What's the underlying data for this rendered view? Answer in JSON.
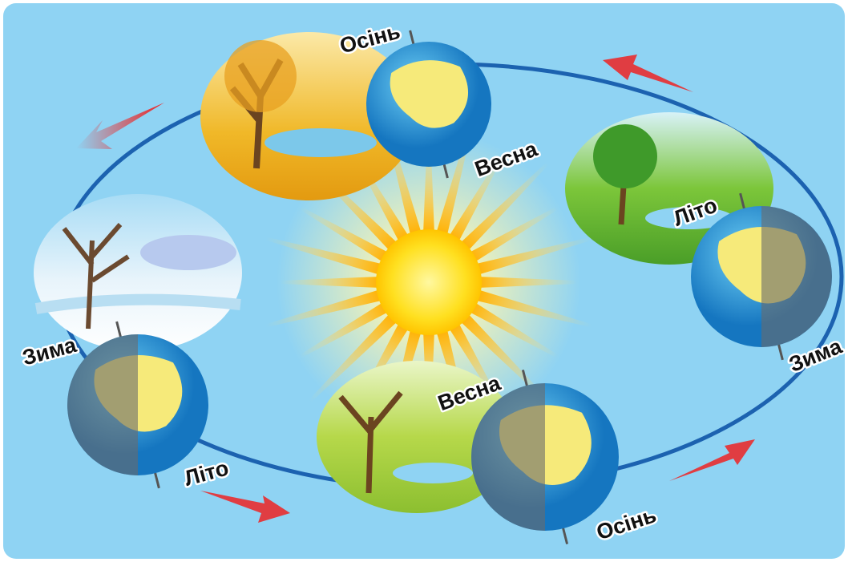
{
  "labels": [
    "Осінь",
    "Весна",
    "Літо",
    "Зима",
    "Зима",
    "Літо",
    "Весна",
    "Осінь"
  ]
}
